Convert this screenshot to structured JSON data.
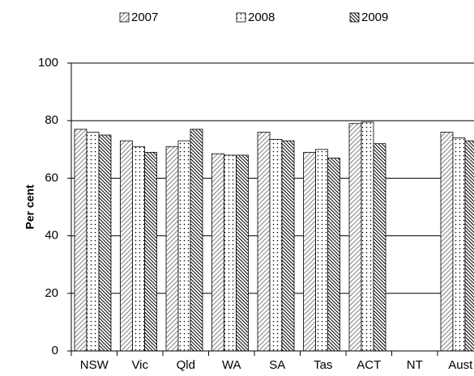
{
  "chart_data": {
    "type": "bar",
    "y_label": "Per cent",
    "categories": [
      "NSW",
      "Vic",
      "Qld",
      "WA",
      "SA",
      "Tas",
      "ACT",
      "NT",
      "Aust"
    ],
    "series": [
      {
        "name": "2007",
        "color": "#808080",
        "values": [
          77,
          73,
          71,
          68.5,
          76,
          69,
          79,
          null,
          76
        ]
      },
      {
        "name": "2008",
        "color": "#000000",
        "values": [
          76,
          71,
          73,
          68,
          73.5,
          70,
          79.5,
          null,
          74
        ]
      },
      {
        "name": "2009",
        "color": "#000000",
        "values": [
          75,
          69,
          77,
          68,
          73,
          67,
          72,
          null,
          73
        ]
      }
    ],
    "ylim": [
      0,
      100
    ],
    "yticks": [
      0,
      20,
      40,
      60,
      80,
      100
    ],
    "grid": true
  }
}
